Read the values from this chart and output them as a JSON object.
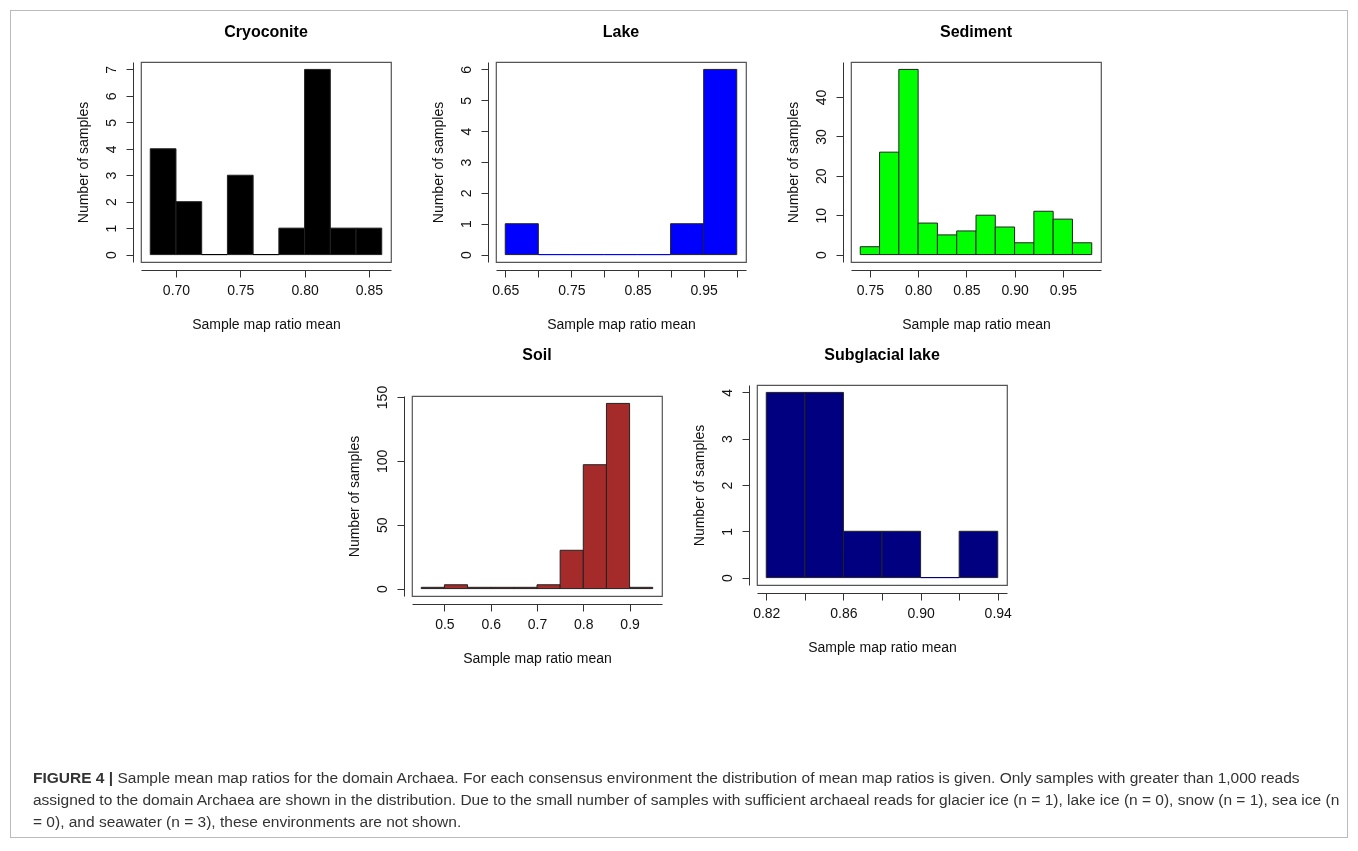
{
  "chart_data": [
    {
      "type": "histogram",
      "title": "Cryoconite",
      "xlabel": "Sample map ratio mean",
      "ylabel": "Number of samples",
      "bins": [
        0.68,
        0.7,
        0.72,
        0.74,
        0.76,
        0.78,
        0.8,
        0.82,
        0.84,
        0.86
      ],
      "values": [
        4,
        2,
        0,
        3,
        0,
        1,
        7,
        1,
        1
      ],
      "color": "#000000",
      "xlim": [
        0.6728,
        0.8672
      ],
      "ylim": [
        -0.28,
        7.28
      ],
      "xticks": [
        {
          "value": 0.7,
          "label": "0.70"
        },
        0.75,
        {
          "value": 0.8,
          "label": "0.80"
        },
        0.85
      ],
      "yticks": [
        0,
        1,
        2,
        3,
        4,
        5,
        6,
        7
      ]
    },
    {
      "type": "histogram",
      "title": "Lake",
      "xlabel": "Sample map ratio mean",
      "ylabel": "Number of samples",
      "bins": [
        0.65,
        0.7,
        0.75,
        0.8,
        0.85,
        0.9,
        0.95,
        1.0
      ],
      "values": [
        1,
        0,
        0,
        0,
        0,
        1,
        6
      ],
      "color": "#0000ff",
      "xlim": [
        0.636,
        1.014
      ],
      "ylim": [
        -0.24,
        6.24
      ],
      "xticks": [
        0.65,
        {
          "value": 0.7,
          "label": null
        },
        0.75,
        {
          "value": 0.8,
          "label": null
        },
        0.85,
        {
          "value": 0.9,
          "label": null
        },
        0.95,
        {
          "value": 1.0,
          "label": null
        }
      ],
      "yticks": [
        0,
        1,
        2,
        3,
        4,
        5,
        6
      ]
    },
    {
      "type": "histogram",
      "title": "Sediment",
      "xlabel": "Sample map ratio mean",
      "ylabel": "Number of samples",
      "bins": [
        0.74,
        0.76,
        0.78,
        0.8,
        0.82,
        0.84,
        0.86,
        0.88,
        0.9,
        0.92,
        0.94,
        0.96,
        0.98
      ],
      "values": [
        2,
        26,
        47,
        8,
        5,
        6,
        10,
        7,
        3,
        11,
        9,
        3
      ],
      "color": "#00ff00",
      "xlim": [
        0.7304,
        0.9896
      ],
      "ylim": [
        -1.88,
        48.88
      ],
      "xticks": [
        0.75,
        {
          "value": 0.8,
          "label": "0.80"
        },
        0.85,
        {
          "value": 0.9,
          "label": "0.90"
        },
        0.95
      ],
      "yticks": [
        0,
        10,
        20,
        30,
        40
      ]
    },
    {
      "type": "histogram",
      "title": "Soil",
      "xlabel": "Sample map ratio mean",
      "ylabel": "Number of samples",
      "bins": [
        0.45,
        0.5,
        0.55,
        0.6,
        0.65,
        0.7,
        0.75,
        0.8,
        0.85,
        0.9,
        0.95
      ],
      "values": [
        1,
        3,
        1,
        1,
        1,
        3,
        30,
        97,
        145,
        1
      ],
      "color": "#a52a2a",
      "xlim": [
        0.43,
        0.97
      ],
      "ylim": [
        -5.8,
        150.8
      ],
      "xticks": [
        0.5,
        0.6,
        0.7,
        0.8,
        0.9
      ],
      "yticks": [
        0,
        50,
        100,
        150
      ]
    },
    {
      "type": "histogram",
      "title": "Subglacial lake",
      "xlabel": "Sample map ratio mean",
      "ylabel": "Number of samples",
      "bins": [
        0.82,
        0.84,
        0.86,
        0.88,
        0.9,
        0.92,
        0.94
      ],
      "values": [
        4,
        4,
        1,
        1,
        0,
        1
      ],
      "color": "#000080",
      "xlim": [
        0.8152,
        0.9448
      ],
      "ylim": [
        -0.16,
        4.16
      ],
      "xticks": [
        0.82,
        {
          "value": 0.84,
          "label": null
        },
        0.86,
        {
          "value": 0.88,
          "label": null
        },
        {
          "value": 0.9,
          "label": "0.90"
        },
        {
          "value": 0.92,
          "label": null
        },
        0.94
      ],
      "yticks": [
        0,
        1,
        2,
        3,
        4
      ],
      "annotations": [
        "FIGURE 4 | Sample mean map ratios for the domain Archaea. For each consensus environment the distribution of mean map ratios is given. Only samples with greater than 1,000 reads assigned to the domain Archaea are shown in the distribution. Due to the small number of samples with sufficient archaeal reads for glacier ice (n = 1), lake ice (n = 0), snow (n = 1), sea ice (n = 0), and seawater (n = 3), these environments are not shown."
      ]
    }
  ]
}
